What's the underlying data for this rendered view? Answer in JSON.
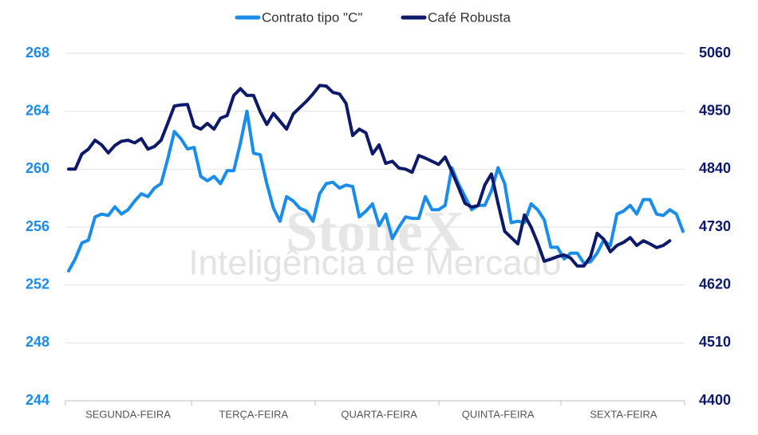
{
  "chart_data": {
    "type": "line",
    "watermark": {
      "brand": "StoneX",
      "subtitle": "Inteligência de Mercado"
    },
    "categories": [
      null,
      null,
      null,
      null,
      null,
      null,
      null,
      null,
      null,
      "SEGUNDA-FEIRA",
      null,
      null,
      null,
      null,
      null,
      null,
      null,
      null,
      null,
      null,
      null,
      null,
      null,
      null,
      null,
      null,
      null,
      null,
      "TERÇA-FEIRA",
      null,
      null,
      null,
      null,
      null,
      null,
      null,
      null,
      null,
      null,
      null,
      null,
      null,
      null,
      null,
      null,
      null,
      null,
      "QUARTA-FEIRA",
      null,
      null,
      null,
      null,
      null,
      null,
      null,
      null,
      null,
      null,
      null,
      null,
      null,
      null,
      null,
      null,
      null,
      "QUINTA-FEIRA",
      null,
      null,
      null,
      null,
      null,
      null,
      null,
      null,
      null,
      null,
      null,
      null,
      null,
      null,
      null,
      null,
      null,
      null,
      "SEXTA-FEIRA",
      null,
      null,
      null,
      null,
      null,
      null,
      null,
      null,
      null
    ],
    "series": [
      {
        "name": "Contrato tipo \"C\"",
        "color": "#1a8cec",
        "axis": "y",
        "values": [
          252.97,
          253.8,
          254.9,
          255.1,
          256.7,
          256.9,
          256.8,
          257.4,
          256.9,
          257.2,
          257.8,
          258.3,
          258.1,
          258.7,
          259.0,
          260.7,
          262.6,
          262.1,
          261.4,
          261.5,
          259.5,
          259.2,
          259.5,
          259.0,
          259.9,
          259.9,
          261.8,
          264.0,
          261.1,
          261.0,
          259.0,
          257.3,
          256.4,
          258.1,
          257.8,
          257.3,
          257.1,
          256.4,
          258.3,
          259.0,
          259.1,
          258.7,
          258.9,
          258.8,
          256.7,
          257.1,
          257.6,
          256.1,
          256.9,
          255.2,
          256.0,
          256.7,
          256.6,
          256.6,
          258.1,
          257.2,
          257.2,
          257.5,
          260.1,
          259.0,
          258.1,
          257.2,
          257.5,
          257.5,
          258.5,
          260.1,
          259.0,
          256.3,
          256.4,
          256.3,
          257.6,
          257.2,
          256.5,
          254.6,
          254.6,
          253.8,
          254.2,
          254.2,
          253.5,
          253.6,
          254.2,
          255.1,
          254.7,
          256.9,
          257.1,
          257.5,
          256.9,
          257.9,
          257.9,
          256.9,
          256.8,
          257.2,
          256.9,
          255.7
        ]
      },
      {
        "name": "Café Robusta",
        "color": "#0d1a6b",
        "axis": "y2",
        "values": [
          4840,
          4840,
          4869,
          4878,
          4895,
          4886,
          4871,
          4885,
          4893,
          4895,
          4890,
          4898,
          4878,
          4883,
          4895,
          4927,
          4960,
          4962,
          4963,
          4922,
          4916,
          4927,
          4916,
          4937,
          4942,
          4980,
          4993,
          4980,
          4980,
          4949,
          4925,
          4946,
          4931,
          4916,
          4945,
          4957,
          4969,
          4983,
          4999,
          4998,
          4986,
          4983,
          4965,
          4904,
          4916,
          4909,
          4869,
          4886,
          4851,
          4855,
          4842,
          4840,
          4834,
          4866,
          4861,
          4855,
          4849,
          4863,
          4836,
          4806,
          4775,
          4768,
          4771,
          4810,
          4831,
          4775,
          4722,
          4710,
          4698,
          4753,
          4730,
          4700,
          4665,
          4669,
          4674,
          4677,
          4671,
          4656,
          4656,
          4674,
          4718,
          4707,
          4683,
          4695,
          4701,
          4710,
          4695,
          4704,
          4698,
          4691,
          4695,
          4704,
          null,
          null
        ]
      }
    ],
    "ylim": [
      244,
      268
    ],
    "yticks": [
      244,
      248,
      252,
      256,
      260,
      264,
      268
    ],
    "y2lim": [
      4400,
      5060
    ],
    "y2ticks": [
      4400,
      4510,
      4620,
      4730,
      4840,
      4950,
      5060
    ],
    "y_tick_color": "#1a8cec",
    "y2_tick_color": "#0d1a6b",
    "grid": true
  }
}
